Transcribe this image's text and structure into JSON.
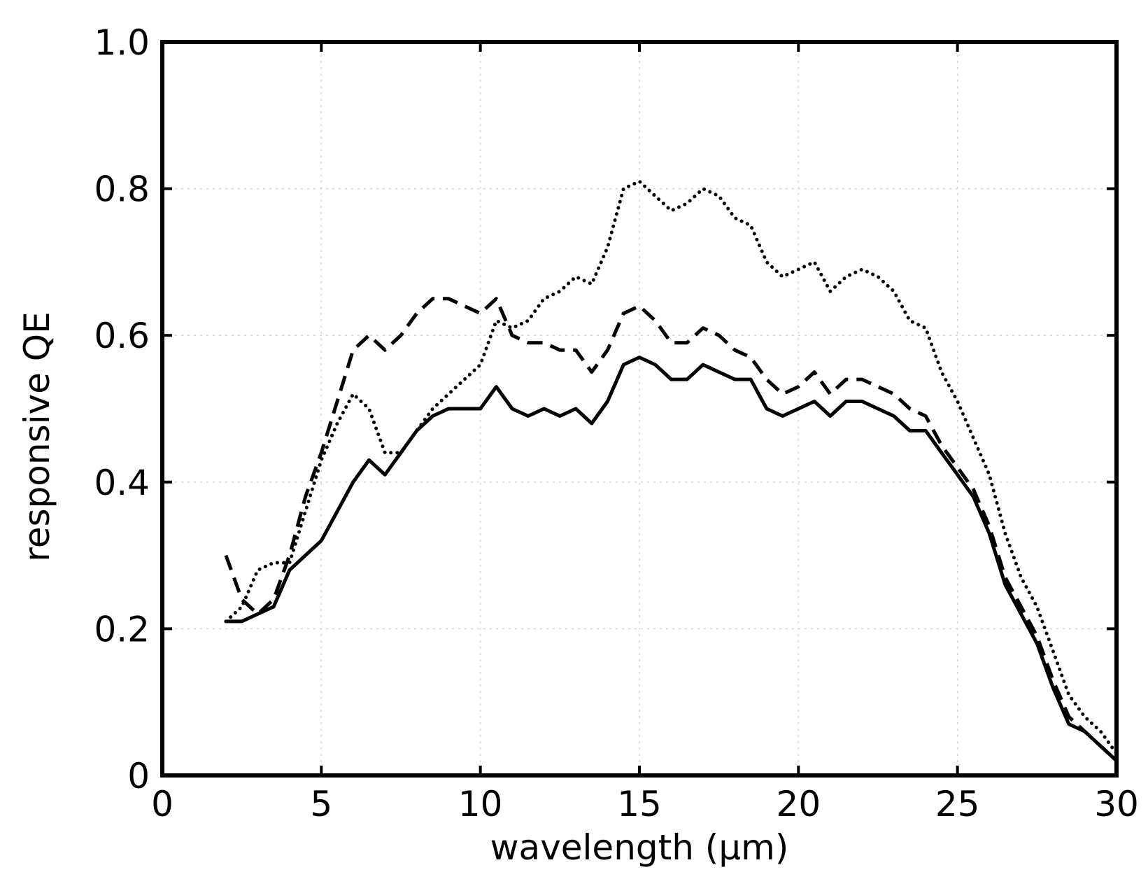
{
  "chart_data": {
    "type": "line",
    "title": "",
    "xlabel": "wavelength (μm)",
    "ylabel": "responsive QE",
    "xlim": [
      0,
      30
    ],
    "ylim": [
      0,
      1.0
    ],
    "xticks": [
      "0",
      "5",
      "10",
      "15",
      "20",
      "25",
      "30"
    ],
    "yticks": [
      "0",
      "0.2",
      "0.4",
      "0.6",
      "0.8",
      "1.0"
    ],
    "grid": true,
    "legend": "none",
    "series": [
      {
        "style": "solid",
        "color": "#000000",
        "x": [
          2,
          2.5,
          3,
          3.5,
          4,
          4.5,
          5,
          5.5,
          6,
          6.5,
          7,
          7.5,
          8,
          8.5,
          9,
          9.5,
          10,
          10.5,
          11,
          11.5,
          12,
          12.5,
          13,
          13.5,
          14,
          14.5,
          15,
          15.5,
          16,
          16.5,
          17,
          17.5,
          18,
          18.5,
          19,
          19.5,
          20,
          20.5,
          21,
          21.5,
          22,
          22.5,
          23,
          23.5,
          24,
          24.5,
          25,
          25.5,
          26,
          26.5,
          27,
          27.5,
          28,
          28.5,
          29,
          29.5,
          30
        ],
        "y": [
          0.21,
          0.21,
          0.22,
          0.23,
          0.28,
          0.3,
          0.32,
          0.36,
          0.4,
          0.43,
          0.41,
          0.44,
          0.47,
          0.49,
          0.5,
          0.5,
          0.5,
          0.53,
          0.5,
          0.49,
          0.5,
          0.49,
          0.5,
          0.48,
          0.51,
          0.56,
          0.57,
          0.56,
          0.54,
          0.54,
          0.56,
          0.55,
          0.54,
          0.54,
          0.5,
          0.49,
          0.5,
          0.51,
          0.49,
          0.51,
          0.51,
          0.5,
          0.49,
          0.47,
          0.47,
          0.44,
          0.41,
          0.38,
          0.33,
          0.26,
          0.22,
          0.18,
          0.12,
          0.07,
          0.06,
          0.04,
          0.02
        ]
      },
      {
        "style": "dashed",
        "color": "#000000",
        "x": [
          2,
          2.5,
          3,
          3.5,
          4,
          4.5,
          5,
          5.5,
          6,
          6.5,
          7,
          7.5,
          8,
          8.5,
          9,
          9.5,
          10,
          10.5,
          11,
          11.5,
          12,
          12.5,
          13,
          13.5,
          14,
          14.5,
          15,
          15.5,
          16,
          16.5,
          17,
          17.5,
          18,
          18.5,
          19,
          19.5,
          20,
          20.5,
          21,
          21.5,
          22,
          22.5,
          23,
          23.5,
          24,
          24.5,
          25,
          25.5,
          26,
          26.5,
          27,
          27.5,
          28,
          28.5,
          29,
          29.5,
          30
        ],
        "y": [
          0.3,
          0.24,
          0.22,
          0.24,
          0.3,
          0.38,
          0.44,
          0.51,
          0.58,
          0.6,
          0.58,
          0.6,
          0.63,
          0.65,
          0.65,
          0.64,
          0.63,
          0.65,
          0.6,
          0.59,
          0.59,
          0.58,
          0.58,
          0.55,
          0.58,
          0.63,
          0.64,
          0.62,
          0.59,
          0.59,
          0.61,
          0.6,
          0.58,
          0.57,
          0.54,
          0.52,
          0.53,
          0.55,
          0.52,
          0.54,
          0.54,
          0.53,
          0.52,
          0.5,
          0.49,
          0.45,
          0.42,
          0.39,
          0.34,
          0.27,
          0.23,
          0.19,
          0.13,
          0.08,
          0.06,
          0.04,
          0.02
        ]
      },
      {
        "style": "dotted",
        "color": "#000000",
        "x": [
          2,
          2.5,
          3,
          3.5,
          4,
          4.5,
          5,
          5.5,
          6,
          6.5,
          7,
          7.5,
          8,
          8.5,
          9,
          9.5,
          10,
          10.5,
          11,
          11.5,
          12,
          12.5,
          13,
          13.5,
          14,
          14.5,
          15,
          15.5,
          16,
          16.5,
          17,
          17.5,
          18,
          18.5,
          19,
          19.5,
          20,
          20.5,
          21,
          21.5,
          22,
          22.5,
          23,
          23.5,
          24,
          24.5,
          25,
          25.5,
          26,
          26.5,
          27,
          27.5,
          28,
          28.5,
          29,
          29.5,
          30
        ],
        "y": [
          0.21,
          0.23,
          0.28,
          0.29,
          0.29,
          0.36,
          0.43,
          0.48,
          0.52,
          0.5,
          0.44,
          0.44,
          0.47,
          0.5,
          0.52,
          0.54,
          0.56,
          0.62,
          0.61,
          0.62,
          0.65,
          0.66,
          0.68,
          0.67,
          0.72,
          0.8,
          0.81,
          0.79,
          0.77,
          0.78,
          0.8,
          0.79,
          0.76,
          0.75,
          0.7,
          0.68,
          0.69,
          0.7,
          0.66,
          0.68,
          0.69,
          0.68,
          0.66,
          0.62,
          0.61,
          0.55,
          0.51,
          0.46,
          0.41,
          0.33,
          0.27,
          0.23,
          0.17,
          0.11,
          0.08,
          0.06,
          0.03
        ]
      }
    ]
  }
}
